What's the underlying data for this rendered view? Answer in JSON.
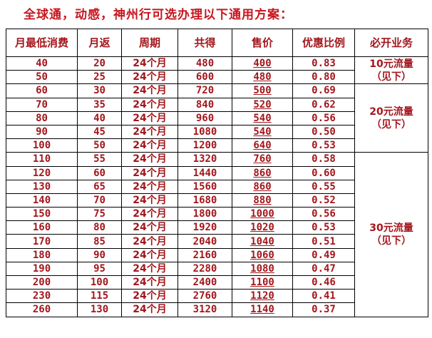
{
  "title": "全球通，动感，神州行可选办理以下通用方案：",
  "headers": [
    "月最低消费",
    "月返",
    "周期",
    "共得",
    "售价",
    "优惠比例",
    "必开业务"
  ],
  "rows": [
    [
      "40",
      "20",
      "24个月",
      "480",
      "400",
      "0.83"
    ],
    [
      "50",
      "25",
      "24个月",
      "600",
      "480",
      "0.80"
    ],
    [
      "60",
      "30",
      "24个月",
      "720",
      "500",
      "0.69"
    ],
    [
      "70",
      "35",
      "24个月",
      "840",
      "520",
      "0.62"
    ],
    [
      "80",
      "40",
      "24个月",
      "960",
      "540",
      "0.56"
    ],
    [
      "90",
      "45",
      "24个月",
      "1080",
      "540",
      "0.50"
    ],
    [
      "100",
      "50",
      "24个月",
      "1200",
      "640",
      "0.53"
    ],
    [
      "110",
      "55",
      "24个月",
      "1320",
      "760",
      "0.58"
    ],
    [
      "120",
      "60",
      "24个月",
      "1440",
      "860",
      "0.60"
    ],
    [
      "130",
      "65",
      "24个月",
      "1560",
      "860",
      "0.55"
    ],
    [
      "140",
      "70",
      "24个月",
      "1680",
      "880",
      "0.52"
    ],
    [
      "150",
      "75",
      "24个月",
      "1800",
      "1000",
      "0.56"
    ],
    [
      "160",
      "80",
      "24个月",
      "1920",
      "1020",
      "0.53"
    ],
    [
      "170",
      "85",
      "24个月",
      "2040",
      "1040",
      "0.51"
    ],
    [
      "180",
      "90",
      "24个月",
      "2160",
      "1060",
      "0.49"
    ],
    [
      "190",
      "95",
      "24个月",
      "2280",
      "1080",
      "0.47"
    ],
    [
      "200",
      "100",
      "24个月",
      "2400",
      "1100",
      "0.46"
    ],
    [
      "230",
      "115",
      "24个月",
      "2760",
      "1120",
      "0.41"
    ],
    [
      "260",
      "130",
      "24个月",
      "3120",
      "1140",
      "0.37"
    ]
  ],
  "required": [
    {
      "label": "10元流量",
      "note": "（见下）",
      "span": 2
    },
    {
      "label": "20元流量",
      "note": "（见下）",
      "span": 5
    },
    {
      "label": "30元流量",
      "note": "（见下）",
      "span": 12
    }
  ]
}
